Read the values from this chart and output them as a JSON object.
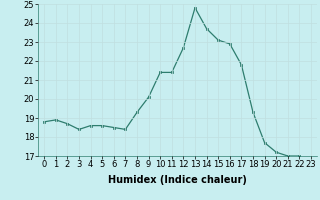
{
  "x": [
    0,
    1,
    2,
    3,
    4,
    5,
    6,
    7,
    8,
    9,
    10,
    11,
    12,
    13,
    14,
    15,
    16,
    17,
    18,
    19,
    20,
    21,
    22,
    23
  ],
  "y": [
    18.8,
    18.9,
    18.7,
    18.4,
    18.6,
    18.6,
    18.5,
    18.4,
    19.3,
    20.1,
    21.4,
    21.4,
    22.7,
    24.8,
    23.7,
    23.1,
    22.9,
    21.8,
    19.3,
    17.7,
    17.2,
    17.0,
    17.0,
    16.7
  ],
  "xlabel": "Humidex (Indice chaleur)",
  "ylim": [
    17,
    25
  ],
  "xlim_min": -0.5,
  "xlim_max": 23.5,
  "yticks": [
    17,
    18,
    19,
    20,
    21,
    22,
    23,
    24,
    25
  ],
  "xticks": [
    0,
    1,
    2,
    3,
    4,
    5,
    6,
    7,
    8,
    9,
    10,
    11,
    12,
    13,
    14,
    15,
    16,
    17,
    18,
    19,
    20,
    21,
    22,
    23
  ],
  "line_color": "#2e7d6e",
  "marker_color": "#2e7d6e",
  "bg_color": "#c8eef0",
  "grid_color": "#c0dfe0",
  "tick_fontsize": 6,
  "xlabel_fontsize": 7
}
